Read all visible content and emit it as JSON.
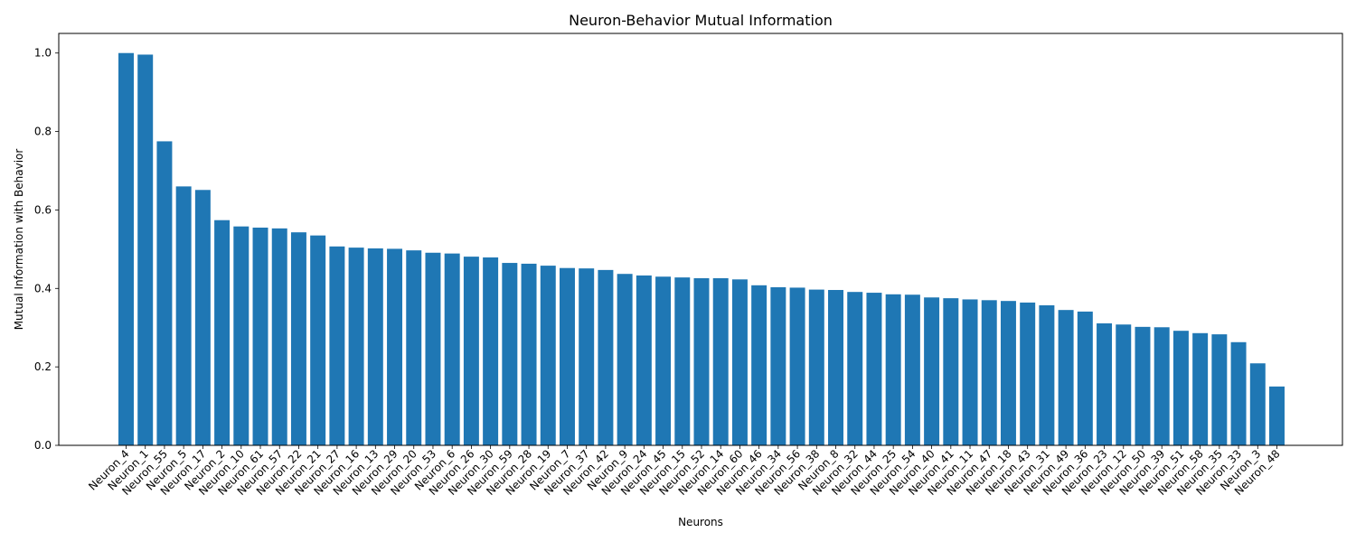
{
  "chart_data": {
    "type": "bar",
    "title": "Neuron-Behavior Mutual Information",
    "xlabel": "Neurons",
    "ylabel": "Mutual Information with Behavior",
    "ylim": [
      0,
      1.05
    ],
    "yticks": [
      "0.0",
      "0.2",
      "0.4",
      "0.6",
      "0.8",
      "1.0"
    ],
    "bar_color": "#1f77b4",
    "grid": false,
    "categories": [
      "Neuron_4",
      "Neuron_1",
      "Neuron_55",
      "Neuron_5",
      "Neuron_17",
      "Neuron_2",
      "Neuron_10",
      "Neuron_61",
      "Neuron_57",
      "Neuron_22",
      "Neuron_21",
      "Neuron_27",
      "Neuron_16",
      "Neuron_13",
      "Neuron_29",
      "Neuron_20",
      "Neuron_53",
      "Neuron_6",
      "Neuron_26",
      "Neuron_30",
      "Neuron_59",
      "Neuron_28",
      "Neuron_19",
      "Neuron_7",
      "Neuron_37",
      "Neuron_42",
      "Neuron_9",
      "Neuron_24",
      "Neuron_45",
      "Neuron_15",
      "Neuron_52",
      "Neuron_14",
      "Neuron_60",
      "Neuron_46",
      "Neuron_34",
      "Neuron_56",
      "Neuron_38",
      "Neuron_8",
      "Neuron_32",
      "Neuron_44",
      "Neuron_25",
      "Neuron_54",
      "Neuron_40",
      "Neuron_41",
      "Neuron_11",
      "Neuron_47",
      "Neuron_18",
      "Neuron_43",
      "Neuron_31",
      "Neuron_49",
      "Neuron_36",
      "Neuron_23",
      "Neuron_12",
      "Neuron_50",
      "Neuron_39",
      "Neuron_51",
      "Neuron_58",
      "Neuron_35",
      "Neuron_33",
      "Neuron_3",
      "Neuron_48"
    ],
    "values": [
      1.0,
      0.996,
      0.775,
      0.66,
      0.651,
      0.574,
      0.558,
      0.555,
      0.553,
      0.543,
      0.535,
      0.507,
      0.504,
      0.502,
      0.501,
      0.497,
      0.491,
      0.489,
      0.481,
      0.479,
      0.465,
      0.463,
      0.458,
      0.452,
      0.451,
      0.447,
      0.437,
      0.433,
      0.43,
      0.428,
      0.426,
      0.426,
      0.423,
      0.408,
      0.403,
      0.402,
      0.397,
      0.396,
      0.391,
      0.389,
      0.385,
      0.384,
      0.377,
      0.375,
      0.372,
      0.37,
      0.368,
      0.364,
      0.357,
      0.345,
      0.341,
      0.311,
      0.308,
      0.302,
      0.301,
      0.292,
      0.286,
      0.283,
      0.263,
      0.209,
      0.15
    ]
  }
}
